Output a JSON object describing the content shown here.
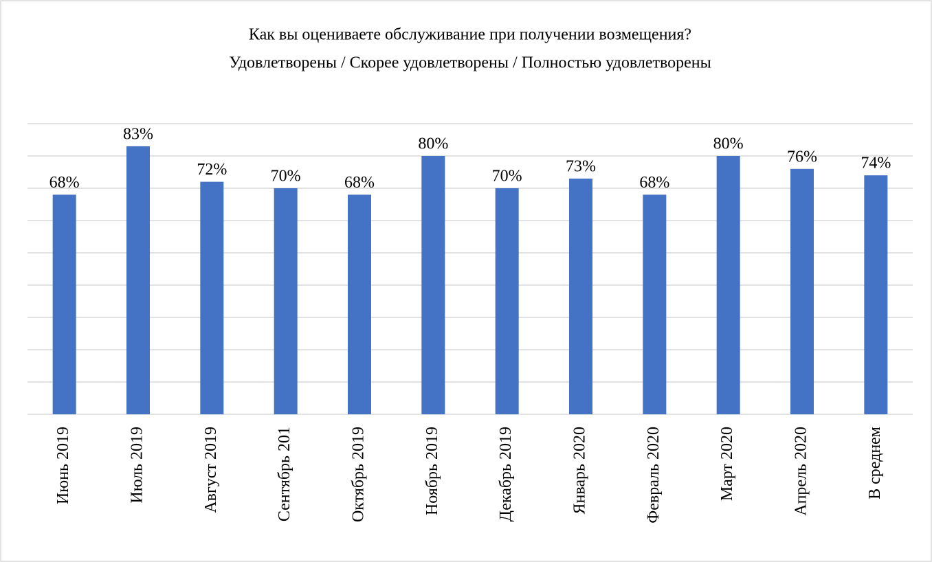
{
  "chart_data": {
    "type": "bar",
    "title": "Как вы оцениваете обслуживание при получении возмещения?",
    "subtitle": "Удовлетворены / Скорее удовлетворены / Полностью удовлетворены",
    "categories": [
      "Июнь 2019",
      "Июль 2019",
      "Август 2019",
      "Сентябрь 201",
      "Октябрь 2019",
      "Ноябрь 2019",
      "Декабрь 2019",
      "Январь 2020",
      "Февраль 2020",
      "Март 2020",
      "Апрель 2020",
      "В среднем"
    ],
    "values": [
      68,
      83,
      72,
      70,
      68,
      80,
      70,
      73,
      68,
      80,
      76,
      74
    ],
    "value_labels": [
      "68%",
      "83%",
      "72%",
      "70%",
      "68%",
      "80%",
      "70%",
      "73%",
      "68%",
      "80%",
      "76%",
      "74%"
    ],
    "color": "#4472c4",
    "ylim": [
      0,
      90
    ],
    "yticks": [
      0,
      10,
      20,
      30,
      40,
      50,
      60,
      70,
      80,
      90
    ],
    "grid": true
  }
}
